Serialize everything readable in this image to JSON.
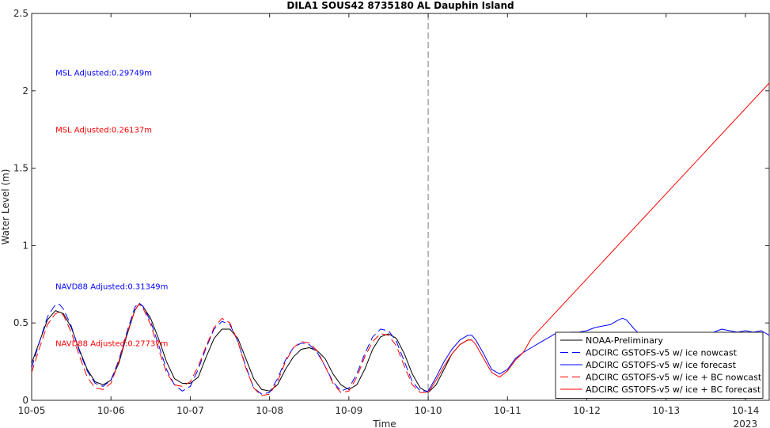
{
  "chart_data": {
    "type": "line",
    "title": "DILA1 SOUS42 8735180 AL Dauphin Island",
    "xlabel": "Time",
    "ylabel": "Water Level (m)",
    "year_label": "2023",
    "xlim": [
      0,
      9.3
    ],
    "ylim": [
      0,
      2.5
    ],
    "x_ticks": [
      {
        "v": 0,
        "label": "10-05"
      },
      {
        "v": 1,
        "label": "10-06"
      },
      {
        "v": 2,
        "label": "10-07"
      },
      {
        "v": 3,
        "label": "10-08"
      },
      {
        "v": 4,
        "label": "10-09"
      },
      {
        "v": 5,
        "label": "10-10"
      },
      {
        "v": 6,
        "label": "10-11"
      },
      {
        "v": 7,
        "label": "10-12"
      },
      {
        "v": 8,
        "label": "10-13"
      },
      {
        "v": 9,
        "label": "10-14"
      }
    ],
    "y_ticks": [
      {
        "v": 0,
        "label": "0"
      },
      {
        "v": 0.5,
        "label": "0.5"
      },
      {
        "v": 1,
        "label": "1"
      },
      {
        "v": 1.5,
        "label": "1.5"
      },
      {
        "v": 2,
        "label": "2"
      },
      {
        "v": 2.5,
        "label": "2.5"
      }
    ],
    "nowcast_forecast_divider_x": 5,
    "annotations": [
      {
        "text": "MSL Adjusted:0.29749m",
        "x": 0.3,
        "y": 2.12,
        "color": "#0000ff"
      },
      {
        "text": "MSL Adjusted:0.26137m",
        "x": 0.3,
        "y": 1.75,
        "color": "#ff0000"
      },
      {
        "text": "NAVD88 Adjusted:0.31349m",
        "x": 0.3,
        "y": 0.74,
        "color": "#0000ff"
      },
      {
        "text": "NAVD88 Adjusted:0.27737m",
        "x": 0.3,
        "y": 0.37,
        "color": "#ff0000"
      }
    ],
    "legend_position": "bottom-right",
    "series": [
      {
        "name": "NOAA-Preliminary",
        "color": "#000000",
        "dash": "solid",
        "points": [
          [
            0.0,
            0.24
          ],
          [
            0.1,
            0.38
          ],
          [
            0.2,
            0.52
          ],
          [
            0.3,
            0.58
          ],
          [
            0.4,
            0.56
          ],
          [
            0.5,
            0.47
          ],
          [
            0.6,
            0.33
          ],
          [
            0.7,
            0.2
          ],
          [
            0.8,
            0.12
          ],
          [
            0.9,
            0.1
          ],
          [
            1.0,
            0.13
          ],
          [
            1.1,
            0.24
          ],
          [
            1.2,
            0.42
          ],
          [
            1.3,
            0.58
          ],
          [
            1.35,
            0.62
          ],
          [
            1.4,
            0.61
          ],
          [
            1.5,
            0.53
          ],
          [
            1.6,
            0.4
          ],
          [
            1.7,
            0.25
          ],
          [
            1.8,
            0.14
          ],
          [
            1.9,
            0.11
          ],
          [
            2.0,
            0.11
          ],
          [
            2.1,
            0.15
          ],
          [
            2.2,
            0.28
          ],
          [
            2.3,
            0.4
          ],
          [
            2.4,
            0.46
          ],
          [
            2.5,
            0.46
          ],
          [
            2.6,
            0.4
          ],
          [
            2.7,
            0.27
          ],
          [
            2.8,
            0.14
          ],
          [
            2.9,
            0.07
          ],
          [
            3.0,
            0.06
          ],
          [
            3.1,
            0.1
          ],
          [
            3.2,
            0.2
          ],
          [
            3.3,
            0.28
          ],
          [
            3.4,
            0.33
          ],
          [
            3.5,
            0.34
          ],
          [
            3.6,
            0.32
          ],
          [
            3.7,
            0.27
          ],
          [
            3.8,
            0.17
          ],
          [
            3.9,
            0.1
          ],
          [
            4.0,
            0.07
          ],
          [
            4.1,
            0.1
          ],
          [
            4.2,
            0.2
          ],
          [
            4.3,
            0.33
          ],
          [
            4.4,
            0.41
          ],
          [
            4.5,
            0.43
          ],
          [
            4.6,
            0.4
          ],
          [
            4.7,
            0.3
          ],
          [
            4.8,
            0.17
          ],
          [
            4.9,
            0.08
          ],
          [
            5.0,
            0.05
          ],
          [
            5.1,
            0.1
          ],
          [
            5.2,
            0.2
          ],
          [
            5.3,
            0.3
          ],
          [
            5.4,
            0.36
          ],
          [
            5.5,
            0.39
          ],
          [
            5.55,
            0.39
          ]
        ]
      },
      {
        "name": "ADCIRC GSTOFS-v5 w/ ice nowcast",
        "color": "#0000ff",
        "dash": "dashed",
        "points": [
          [
            0.0,
            0.21
          ],
          [
            0.1,
            0.38
          ],
          [
            0.2,
            0.54
          ],
          [
            0.3,
            0.62
          ],
          [
            0.35,
            0.62
          ],
          [
            0.4,
            0.59
          ],
          [
            0.5,
            0.48
          ],
          [
            0.6,
            0.32
          ],
          [
            0.7,
            0.19
          ],
          [
            0.8,
            0.11
          ],
          [
            0.9,
            0.09
          ],
          [
            1.0,
            0.13
          ],
          [
            1.1,
            0.26
          ],
          [
            1.2,
            0.44
          ],
          [
            1.3,
            0.6
          ],
          [
            1.35,
            0.63
          ],
          [
            1.4,
            0.61
          ],
          [
            1.5,
            0.51
          ],
          [
            1.6,
            0.36
          ],
          [
            1.7,
            0.2
          ],
          [
            1.8,
            0.1
          ],
          [
            1.9,
            0.06
          ],
          [
            2.0,
            0.09
          ],
          [
            2.1,
            0.2
          ],
          [
            2.2,
            0.34
          ],
          [
            2.3,
            0.46
          ],
          [
            2.4,
            0.51
          ],
          [
            2.5,
            0.49
          ],
          [
            2.6,
            0.38
          ],
          [
            2.7,
            0.22
          ],
          [
            2.8,
            0.08
          ],
          [
            2.9,
            0.04
          ],
          [
            3.0,
            0.05
          ],
          [
            3.1,
            0.14
          ],
          [
            3.2,
            0.26
          ],
          [
            3.3,
            0.34
          ],
          [
            3.4,
            0.37
          ],
          [
            3.5,
            0.36
          ],
          [
            3.6,
            0.31
          ],
          [
            3.7,
            0.22
          ],
          [
            3.8,
            0.12
          ],
          [
            3.9,
            0.06
          ],
          [
            4.0,
            0.08
          ],
          [
            4.1,
            0.17
          ],
          [
            4.2,
            0.3
          ],
          [
            4.3,
            0.41
          ],
          [
            4.4,
            0.46
          ],
          [
            4.5,
            0.45
          ],
          [
            4.6,
            0.38
          ],
          [
            4.7,
            0.25
          ],
          [
            4.8,
            0.12
          ],
          [
            4.9,
            0.06
          ],
          [
            5.0,
            0.06
          ]
        ]
      },
      {
        "name": "ADCIRC GSTOFS-v5 w/ ice forecast",
        "color": "#0000ff",
        "dash": "solid",
        "points": [
          [
            5.0,
            0.06
          ],
          [
            5.1,
            0.15
          ],
          [
            5.2,
            0.25
          ],
          [
            5.3,
            0.33
          ],
          [
            5.4,
            0.39
          ],
          [
            5.5,
            0.42
          ],
          [
            5.55,
            0.42
          ],
          [
            5.6,
            0.39
          ],
          [
            5.7,
            0.3
          ],
          [
            5.8,
            0.2
          ],
          [
            5.9,
            0.17
          ],
          [
            6.0,
            0.2
          ],
          [
            6.1,
            0.27
          ],
          [
            6.2,
            0.31
          ],
          [
            6.3,
            0.34
          ],
          [
            6.4,
            0.37
          ],
          [
            6.5,
            0.4
          ],
          [
            6.6,
            0.43
          ],
          [
            6.7,
            0.43
          ],
          [
            6.8,
            0.44
          ],
          [
            6.9,
            0.44
          ],
          [
            7.0,
            0.45
          ],
          [
            7.1,
            0.47
          ],
          [
            7.2,
            0.48
          ],
          [
            7.3,
            0.49
          ],
          [
            7.4,
            0.52
          ],
          [
            7.45,
            0.53
          ],
          [
            7.5,
            0.52
          ],
          [
            7.6,
            0.46
          ],
          [
            7.7,
            0.41
          ],
          [
            7.8,
            0.41
          ],
          [
            7.9,
            0.44
          ],
          [
            8.0,
            0.42
          ],
          [
            8.1,
            0.4
          ],
          [
            8.2,
            0.44
          ],
          [
            8.3,
            0.43
          ],
          [
            8.4,
            0.4
          ],
          [
            8.5,
            0.42
          ],
          [
            8.6,
            0.44
          ],
          [
            8.7,
            0.46
          ],
          [
            8.8,
            0.45
          ],
          [
            8.9,
            0.44
          ],
          [
            9.0,
            0.45
          ],
          [
            9.1,
            0.44
          ],
          [
            9.2,
            0.45
          ],
          [
            9.3,
            0.42
          ]
        ]
      },
      {
        "name": "ADCIRC GSTOFS-v5 w/ ice + BC nowcast",
        "color": "#ff0000",
        "dash": "dashed",
        "points": [
          [
            0.0,
            0.18
          ],
          [
            0.1,
            0.34
          ],
          [
            0.2,
            0.49
          ],
          [
            0.3,
            0.56
          ],
          [
            0.35,
            0.57
          ],
          [
            0.4,
            0.55
          ],
          [
            0.5,
            0.44
          ],
          [
            0.6,
            0.29
          ],
          [
            0.7,
            0.15
          ],
          [
            0.8,
            0.08
          ],
          [
            0.9,
            0.07
          ],
          [
            1.0,
            0.11
          ],
          [
            1.1,
            0.25
          ],
          [
            1.2,
            0.43
          ],
          [
            1.3,
            0.58
          ],
          [
            1.35,
            0.62
          ],
          [
            1.4,
            0.6
          ],
          [
            1.5,
            0.49
          ],
          [
            1.6,
            0.33
          ],
          [
            1.7,
            0.18
          ],
          [
            1.8,
            0.1
          ],
          [
            1.9,
            0.09
          ],
          [
            2.0,
            0.12
          ],
          [
            2.1,
            0.22
          ],
          [
            2.2,
            0.35
          ],
          [
            2.3,
            0.47
          ],
          [
            2.4,
            0.53
          ],
          [
            2.5,
            0.5
          ],
          [
            2.6,
            0.38
          ],
          [
            2.7,
            0.21
          ],
          [
            2.8,
            0.08
          ],
          [
            2.9,
            0.03
          ],
          [
            3.0,
            0.04
          ],
          [
            3.1,
            0.12
          ],
          [
            3.2,
            0.25
          ],
          [
            3.3,
            0.34
          ],
          [
            3.4,
            0.38
          ],
          [
            3.5,
            0.37
          ],
          [
            3.6,
            0.32
          ],
          [
            3.7,
            0.22
          ],
          [
            3.8,
            0.11
          ],
          [
            3.9,
            0.05
          ],
          [
            4.0,
            0.06
          ],
          [
            4.1,
            0.15
          ],
          [
            4.2,
            0.28
          ],
          [
            4.3,
            0.38
          ],
          [
            4.4,
            0.43
          ],
          [
            4.5,
            0.42
          ],
          [
            4.6,
            0.35
          ],
          [
            4.7,
            0.22
          ],
          [
            4.8,
            0.1
          ],
          [
            4.9,
            0.05
          ],
          [
            5.0,
            0.05
          ]
        ]
      },
      {
        "name": "ADCIRC GSTOFS-v5 w/ ice + BC forecast",
        "color": "#ff0000",
        "dash": "solid",
        "points": [
          [
            5.0,
            0.05
          ],
          [
            5.1,
            0.13
          ],
          [
            5.2,
            0.22
          ],
          [
            5.3,
            0.3
          ],
          [
            5.4,
            0.36
          ],
          [
            5.5,
            0.39
          ],
          [
            5.55,
            0.39
          ],
          [
            5.6,
            0.36
          ],
          [
            5.7,
            0.27
          ],
          [
            5.8,
            0.18
          ],
          [
            5.9,
            0.15
          ],
          [
            6.0,
            0.19
          ],
          [
            6.1,
            0.26
          ],
          [
            6.2,
            0.31
          ],
          [
            6.3,
            0.4
          ],
          [
            9.3,
            2.05
          ]
        ]
      }
    ]
  }
}
